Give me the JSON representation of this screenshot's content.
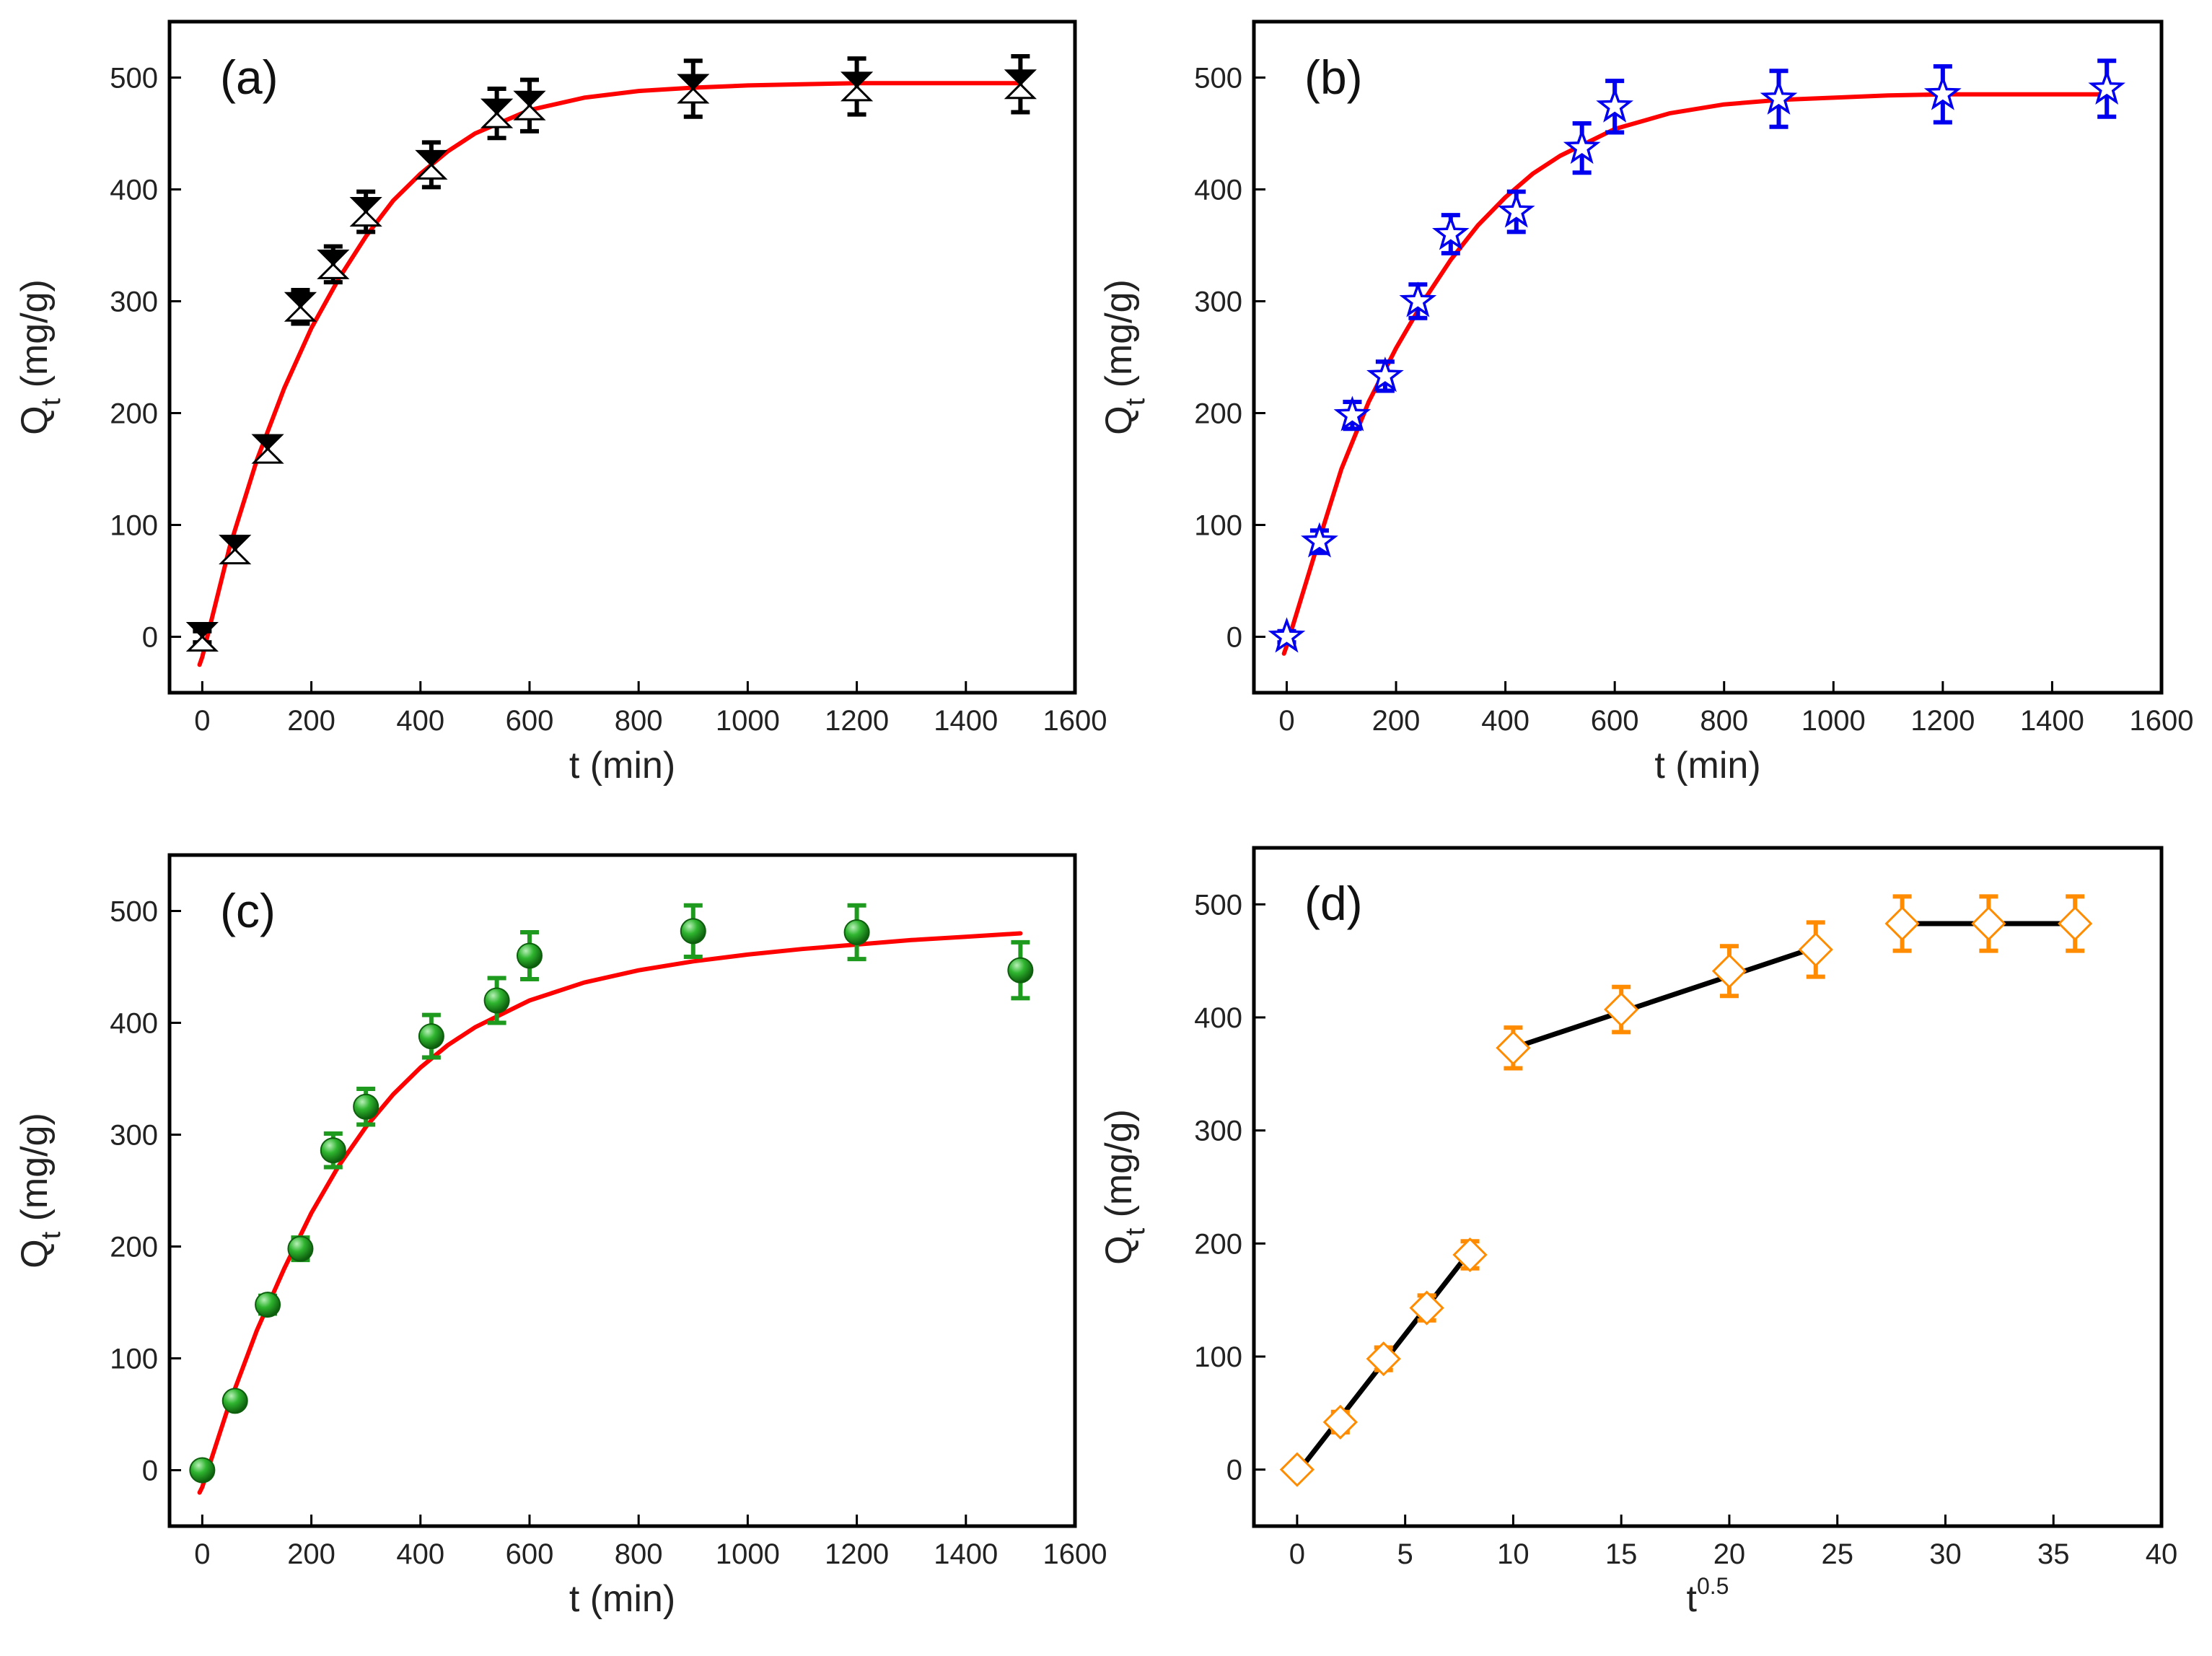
{
  "colors": {
    "fit": "#ff0000",
    "linear": "#000000",
    "axis": "#000000",
    "a": "#000000",
    "b": "#0000ee",
    "c": "#1e9a1e",
    "d": "#ff8c00"
  },
  "chart_data": [
    {
      "type": "scatter",
      "panel_label": "(a)",
      "xlabel": "t (min)",
      "ylabel": "Q",
      "ylabel_sub": "t",
      "ylabel_unit": " (mg/g)",
      "xlim": [
        -60,
        1600
      ],
      "ylim": [
        -50,
        550
      ],
      "xticks": [
        0,
        200,
        400,
        600,
        800,
        1000,
        1200,
        1400,
        1600
      ],
      "yticks": [
        0,
        100,
        200,
        300,
        400,
        500
      ],
      "marker": "hourglass",
      "series": [
        {
          "name": "data",
          "x": [
            0,
            60,
            120,
            180,
            240,
            300,
            420,
            540,
            600,
            900,
            1200,
            1500
          ],
          "y": [
            0,
            78,
            168,
            295,
            333,
            380,
            422,
            468,
            475,
            490,
            492,
            494
          ],
          "err": [
            5,
            10,
            10,
            15,
            16,
            18,
            20,
            22,
            23,
            25,
            25,
            25
          ]
        },
        {
          "name": "fit",
          "type": "line",
          "x": [
            -5,
            0,
            50,
            100,
            150,
            200,
            250,
            300,
            350,
            400,
            450,
            500,
            600,
            700,
            800,
            900,
            1000,
            1100,
            1200,
            1300,
            1400,
            1500
          ],
          "y": [
            -25,
            -18,
            80,
            158,
            222,
            276,
            320,
            358,
            390,
            414,
            434,
            450,
            471,
            482,
            488,
            491,
            493,
            494,
            495,
            495,
            495,
            495
          ]
        }
      ]
    },
    {
      "type": "scatter",
      "panel_label": "(b)",
      "xlabel": "t (min)",
      "ylabel": "Q",
      "ylabel_sub": "t",
      "ylabel_unit": " (mg/g)",
      "xlim": [
        -60,
        1600
      ],
      "ylim": [
        -50,
        550
      ],
      "xticks": [
        0,
        200,
        400,
        600,
        800,
        1000,
        1200,
        1400,
        1600
      ],
      "yticks": [
        0,
        100,
        200,
        300,
        400,
        500
      ],
      "marker": "star",
      "series": [
        {
          "name": "data",
          "x": [
            0,
            60,
            120,
            180,
            240,
            300,
            420,
            540,
            600,
            900,
            1200,
            1500
          ],
          "y": [
            0,
            85,
            198,
            233,
            300,
            360,
            380,
            437,
            474,
            481,
            485,
            490
          ],
          "err": [
            5,
            10,
            12,
            13,
            15,
            17,
            18,
            22,
            23,
            25,
            25,
            25
          ]
        },
        {
          "name": "fit",
          "type": "line",
          "x": [
            -5,
            0,
            50,
            100,
            150,
            200,
            250,
            300,
            350,
            400,
            450,
            500,
            600,
            700,
            800,
            900,
            1000,
            1100,
            1200,
            1300,
            1400,
            1500
          ],
          "y": [
            -15,
            -8,
            72,
            150,
            210,
            258,
            300,
            337,
            368,
            393,
            414,
            430,
            454,
            468,
            476,
            480,
            482,
            484,
            485,
            485,
            485,
            485
          ]
        }
      ]
    },
    {
      "type": "scatter",
      "panel_label": "(c)",
      "xlabel": "t (min)",
      "ylabel": "Q",
      "ylabel_sub": "t",
      "ylabel_unit": " (mg/g)",
      "xlim": [
        -60,
        1600
      ],
      "ylim": [
        -50,
        550
      ],
      "xticks": [
        0,
        200,
        400,
        600,
        800,
        1000,
        1200,
        1400,
        1600
      ],
      "yticks": [
        0,
        100,
        200,
        300,
        400,
        500
      ],
      "marker": "sphere",
      "series": [
        {
          "name": "data",
          "x": [
            0,
            60,
            120,
            180,
            240,
            300,
            420,
            540,
            600,
            900,
            1200,
            1500
          ],
          "y": [
            0,
            62,
            148,
            198,
            286,
            325,
            388,
            420,
            460,
            482,
            481,
            447
          ],
          "err": [
            4,
            6,
            8,
            10,
            15,
            16,
            19,
            20,
            21,
            23,
            24,
            25
          ]
        },
        {
          "name": "fit",
          "type": "line",
          "x": [
            -5,
            0,
            50,
            100,
            150,
            200,
            250,
            300,
            350,
            400,
            450,
            500,
            600,
            700,
            800,
            900,
            1000,
            1100,
            1200,
            1300,
            1400,
            1500
          ],
          "y": [
            -20,
            -15,
            60,
            125,
            180,
            230,
            272,
            307,
            336,
            360,
            380,
            396,
            420,
            436,
            447,
            455,
            461,
            466,
            470,
            474,
            477,
            480
          ]
        }
      ]
    },
    {
      "type": "scatter",
      "panel_label": "(d)",
      "xlabel": "t",
      "xlabel_sup": "0.5",
      "ylabel": "Q",
      "ylabel_sub": "t",
      "ylabel_unit": " (mg/g)",
      "xlim": [
        -2,
        40
      ],
      "ylim": [
        -50,
        550
      ],
      "xticks": [
        0,
        5,
        10,
        15,
        20,
        25,
        30,
        35,
        40
      ],
      "yticks": [
        0,
        100,
        200,
        300,
        400,
        500
      ],
      "marker": "diamond",
      "series": [
        {
          "name": "data",
          "x": [
            0,
            2,
            4,
            6,
            8,
            10,
            15,
            20,
            24,
            28,
            32,
            36
          ],
          "y": [
            0,
            42,
            98,
            143,
            190,
            373,
            407,
            441,
            460,
            483,
            483,
            483
          ],
          "err": [
            4,
            9,
            10,
            11,
            12,
            18,
            20,
            22,
            24,
            24,
            24,
            24
          ]
        },
        {
          "name": "linear fit 1",
          "type": "line",
          "x": [
            0,
            8
          ],
          "y": [
            -3,
            193
          ]
        },
        {
          "name": "linear fit 2",
          "type": "line",
          "x": [
            10,
            24
          ],
          "y": [
            373,
            462
          ]
        },
        {
          "name": "linear fit 3",
          "type": "line",
          "x": [
            28,
            36
          ],
          "y": [
            483,
            483
          ]
        }
      ]
    }
  ]
}
